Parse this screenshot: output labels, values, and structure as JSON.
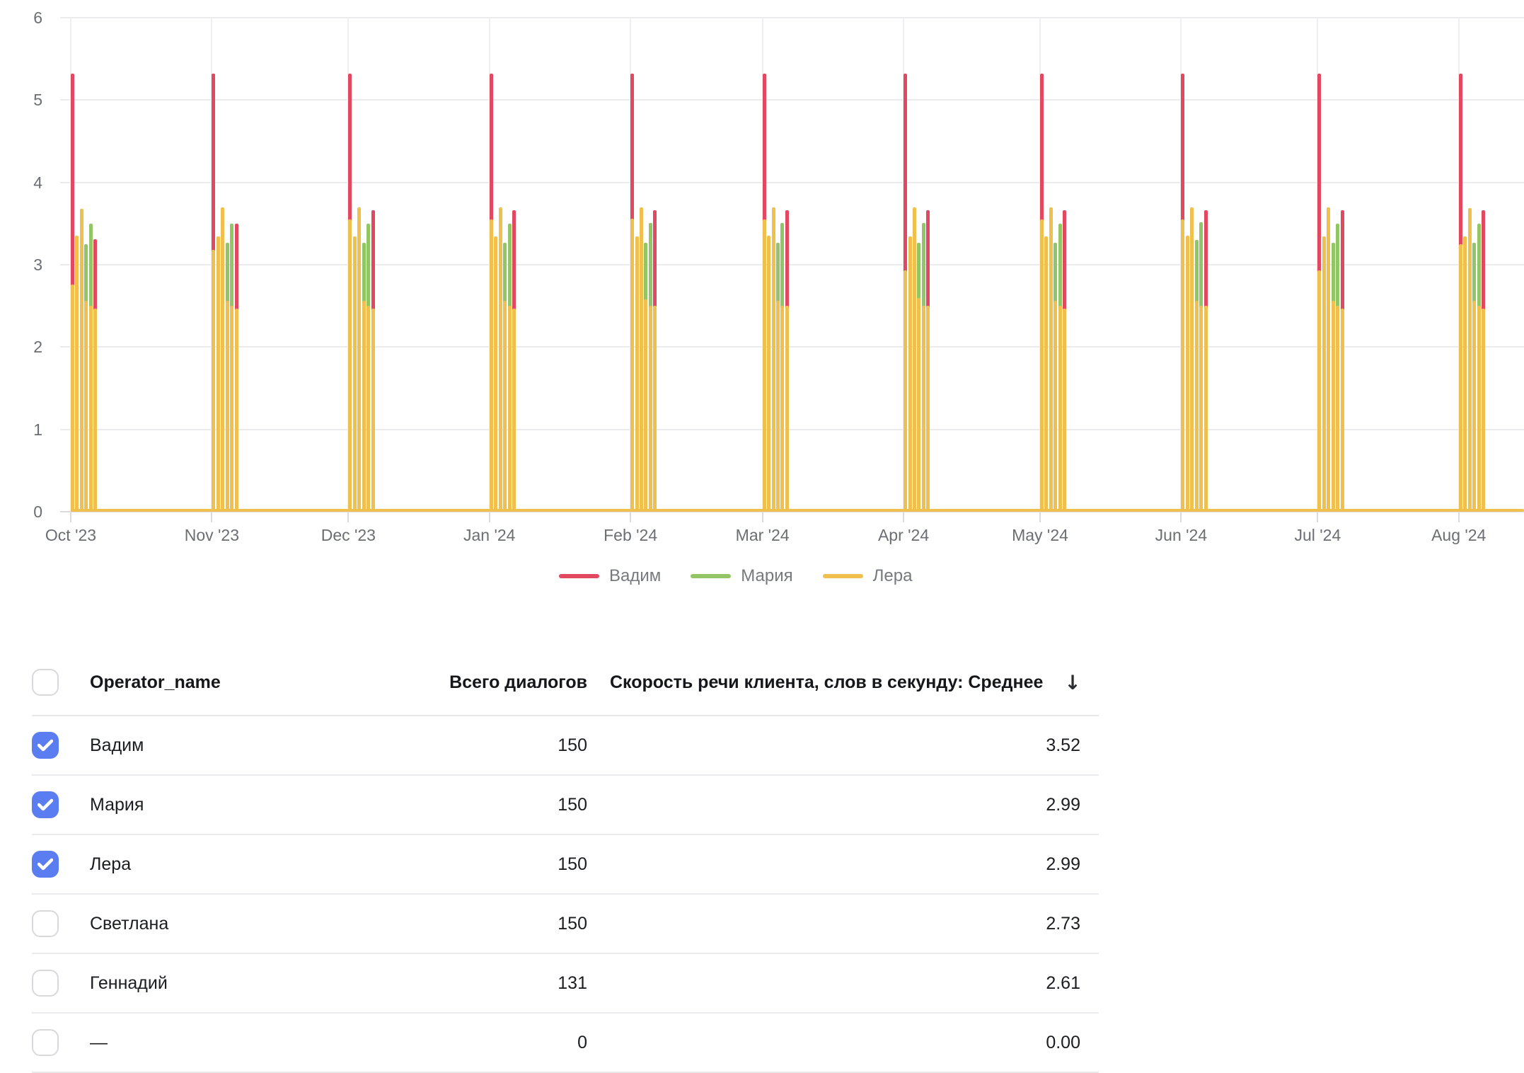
{
  "chart_data": {
    "type": "bar",
    "title": "",
    "xlabel": "",
    "ylabel": "",
    "ylim": [
      0,
      6
    ],
    "y_ticks": [
      "0",
      "1",
      "2",
      "3",
      "4",
      "5",
      "6"
    ],
    "grid": true,
    "legend_position": "bottom-center",
    "series_colors": {
      "red": "#e2485f",
      "green": "#92c566",
      "yellow": "#f0c04e"
    },
    "legend": [
      {
        "name": "Вадим",
        "color_key": "red"
      },
      {
        "name": "Мария",
        "color_key": "green"
      },
      {
        "name": "Лера",
        "color_key": "yellow"
      }
    ],
    "x_ticks": [
      {
        "label": "Oct '23",
        "day_offset": 0
      },
      {
        "label": "Nov '23",
        "day_offset": 31
      },
      {
        "label": "Dec '23",
        "day_offset": 61
      },
      {
        "label": "Jan '24",
        "day_offset": 92
      },
      {
        "label": "Feb '24",
        "day_offset": 123
      },
      {
        "label": "Mar '24",
        "day_offset": 152
      },
      {
        "label": "Apr '24",
        "day_offset": 183
      },
      {
        "label": "May '24",
        "day_offset": 213
      },
      {
        "label": "Jun '24",
        "day_offset": 244
      },
      {
        "label": "Jul '24",
        "day_offset": 274
      },
      {
        "label": "Aug '24",
        "day_offset": 305
      }
    ],
    "baseline_series": {
      "color_key": "yellow",
      "value": 0.03
    },
    "clusters": [
      {
        "month": "Oct '23",
        "bars": [
          {
            "back": 5.32,
            "back_color": "red",
            "front": 2.76
          },
          {
            "front": 3.35
          },
          {
            "front": 3.68
          },
          {
            "back": 3.25,
            "back_color": "green",
            "front": 2.56
          },
          {
            "back": 3.5,
            "back_color": "green",
            "front": 2.5
          },
          {
            "back": 3.31,
            "back_color": "red",
            "front": 2.47
          }
        ]
      },
      {
        "month": "Nov '23",
        "bars": [
          {
            "back": 5.32,
            "back_color": "red",
            "front": 3.18
          },
          {
            "front": 3.34
          },
          {
            "front": 3.7
          },
          {
            "back": 3.27,
            "back_color": "green",
            "front": 2.56
          },
          {
            "back": 3.5,
            "back_color": "green",
            "front": 2.5
          },
          {
            "back": 3.5,
            "back_color": "red",
            "front": 2.47
          }
        ]
      },
      {
        "month": "Dec '23",
        "bars": [
          {
            "back": 5.32,
            "back_color": "red",
            "front": 3.55
          },
          {
            "front": 3.34
          },
          {
            "front": 3.7
          },
          {
            "back": 3.27,
            "back_color": "green",
            "front": 2.56
          },
          {
            "back": 3.5,
            "back_color": "green",
            "front": 2.5
          },
          {
            "back": 3.66,
            "back_color": "red",
            "front": 2.47
          }
        ]
      },
      {
        "month": "Jan '24",
        "bars": [
          {
            "back": 5.32,
            "back_color": "red",
            "front": 3.55
          },
          {
            "front": 3.34
          },
          {
            "front": 3.7
          },
          {
            "back": 3.27,
            "back_color": "green",
            "front": 2.56
          },
          {
            "back": 3.5,
            "back_color": "green",
            "front": 2.5
          },
          {
            "back": 3.66,
            "back_color": "red",
            "front": 2.47
          }
        ]
      },
      {
        "month": "Feb '24",
        "bars": [
          {
            "back": 5.32,
            "back_color": "red",
            "front": 3.56
          },
          {
            "front": 3.34
          },
          {
            "front": 3.7
          },
          {
            "back": 3.27,
            "back_color": "green",
            "front": 2.58
          },
          {
            "back": 3.51,
            "back_color": "green",
            "front": 2.5
          },
          {
            "back": 3.66,
            "back_color": "red",
            "front": 2.5
          }
        ]
      },
      {
        "month": "Mar '24",
        "bars": [
          {
            "back": 5.32,
            "back_color": "red",
            "front": 3.55
          },
          {
            "front": 3.35
          },
          {
            "front": 3.7
          },
          {
            "back": 3.27,
            "back_color": "green",
            "front": 2.56
          },
          {
            "back": 3.51,
            "back_color": "green",
            "front": 2.5
          },
          {
            "back": 3.66,
            "back_color": "red",
            "front": 2.5
          }
        ]
      },
      {
        "month": "Apr '24",
        "bars": [
          {
            "back": 5.32,
            "back_color": "red",
            "front": 2.93
          },
          {
            "front": 3.34
          },
          {
            "front": 3.7
          },
          {
            "back": 3.27,
            "back_color": "green",
            "front": 2.6
          },
          {
            "back": 3.51,
            "back_color": "green",
            "front": 2.5
          },
          {
            "back": 3.66,
            "back_color": "red",
            "front": 2.5
          }
        ]
      },
      {
        "month": "May '24",
        "bars": [
          {
            "back": 5.32,
            "back_color": "red",
            "front": 3.55
          },
          {
            "front": 3.34
          },
          {
            "front": 3.7
          },
          {
            "back": 3.27,
            "back_color": "green",
            "front": 2.56
          },
          {
            "back": 3.5,
            "back_color": "green",
            "front": 2.5
          },
          {
            "back": 3.66,
            "back_color": "red",
            "front": 2.47
          }
        ]
      },
      {
        "month": "Jun '24",
        "bars": [
          {
            "back": 5.32,
            "back_color": "red",
            "front": 3.55
          },
          {
            "front": 3.35
          },
          {
            "front": 3.7
          },
          {
            "back": 3.3,
            "back_color": "green",
            "front": 2.56
          },
          {
            "back": 3.52,
            "back_color": "green",
            "front": 2.5
          },
          {
            "back": 3.66,
            "back_color": "red",
            "front": 2.5
          }
        ]
      },
      {
        "month": "Jul '24",
        "bars": [
          {
            "back": 5.32,
            "back_color": "red",
            "front": 2.93
          },
          {
            "front": 3.34
          },
          {
            "front": 3.7
          },
          {
            "back": 3.27,
            "back_color": "green",
            "front": 2.56
          },
          {
            "back": 3.5,
            "back_color": "green",
            "front": 2.5
          },
          {
            "back": 3.66,
            "back_color": "red",
            "front": 2.47
          }
        ]
      },
      {
        "month": "Aug '24",
        "bars": [
          {
            "back": 5.32,
            "back_color": "red",
            "front": 3.25
          },
          {
            "front": 3.34
          },
          {
            "front": 3.69
          },
          {
            "back": 3.27,
            "back_color": "green",
            "front": 2.56
          },
          {
            "back": 3.5,
            "back_color": "green",
            "front": 2.5
          },
          {
            "back": 3.66,
            "back_color": "red",
            "front": 2.47
          }
        ]
      }
    ]
  },
  "table": {
    "columns": {
      "name": "Operator_name",
      "total": "Всего диалогов",
      "metric": "Скорость речи клиента, слов в секунду: Среднее",
      "sort_icon": "↓"
    },
    "rows": [
      {
        "checked": true,
        "name": "Вадим",
        "total": "150",
        "metric": "3.52"
      },
      {
        "checked": true,
        "name": "Мария",
        "total": "150",
        "metric": "2.99"
      },
      {
        "checked": true,
        "name": "Лера",
        "total": "150",
        "metric": "2.99"
      },
      {
        "checked": false,
        "name": "Светлана",
        "total": "150",
        "metric": "2.73"
      },
      {
        "checked": false,
        "name": "Геннадий",
        "total": "131",
        "metric": "2.61"
      },
      {
        "checked": false,
        "name": "—",
        "total": "0",
        "metric": "0.00"
      }
    ]
  }
}
